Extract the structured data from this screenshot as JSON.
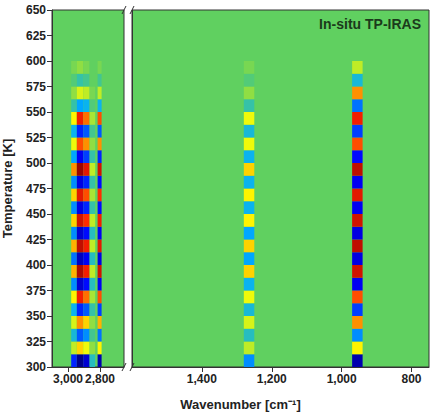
{
  "chart_data": {
    "type": "heatmap",
    "annotation": "In-situ TP-IRAS",
    "x_label": "Wavenumber [cm⁻¹]",
    "y_label": "Temperature [K]",
    "ylim": [
      300,
      650
    ],
    "yticks": [
      300,
      325,
      350,
      375,
      400,
      425,
      450,
      475,
      500,
      525,
      550,
      575,
      600,
      625,
      650
    ],
    "zlim": [
      -1,
      1
    ],
    "y_bins": [
      300,
      312.5,
      325,
      337.5,
      350,
      362.5,
      375,
      387.5,
      400,
      412.5,
      425,
      437.5,
      450,
      462.5,
      475,
      487.5,
      500,
      512.5,
      525,
      537.5,
      550,
      562.5,
      575,
      587.5,
      600
    ],
    "panels": [
      {
        "xlim": [
          3100,
          2650
        ],
        "xticks": [
          3000,
          2800
        ],
        "x_bins": [
          [
            2980,
            2945
          ],
          [
            2945,
            2905
          ],
          [
            2905,
            2865
          ],
          [
            2865,
            2830
          ],
          [
            2815,
            2790
          ]
        ],
        "z": [
          [
            -0.6,
            -1.0,
            -0.8,
            -0.2,
            -0.9
          ],
          [
            0.2,
            0.4,
            0.3,
            0.1,
            0.35
          ],
          [
            -0.25,
            -0.5,
            -0.4,
            -0.1,
            -0.45
          ],
          [
            0.25,
            0.5,
            0.4,
            0.1,
            0.45
          ],
          [
            -0.3,
            -0.6,
            -0.5,
            -0.15,
            -0.55
          ],
          [
            0.35,
            0.7,
            0.55,
            0.15,
            0.6
          ],
          [
            -0.4,
            -0.8,
            -0.65,
            -0.2,
            -0.7
          ],
          [
            0.45,
            0.9,
            0.7,
            0.2,
            0.8
          ],
          [
            -0.45,
            -0.85,
            -0.7,
            -0.2,
            -0.75
          ],
          [
            0.45,
            0.85,
            0.7,
            0.2,
            0.75
          ],
          [
            -0.4,
            -0.8,
            -0.65,
            -0.2,
            -0.7
          ],
          [
            0.4,
            0.8,
            0.65,
            0.2,
            0.7
          ],
          [
            -0.4,
            -0.75,
            -0.6,
            -0.15,
            -0.65
          ],
          [
            0.4,
            0.75,
            0.6,
            0.15,
            0.65
          ],
          [
            -0.4,
            -0.75,
            -0.6,
            -0.15,
            -0.65
          ],
          [
            0.5,
            0.95,
            0.75,
            0.2,
            0.8
          ],
          [
            -0.35,
            -0.7,
            -0.55,
            -0.15,
            -0.6
          ],
          [
            0.3,
            0.6,
            0.5,
            0.1,
            0.5
          ],
          [
            -0.3,
            -0.6,
            -0.5,
            -0.1,
            -0.5
          ],
          [
            0.35,
            0.7,
            0.55,
            0.15,
            0.6
          ],
          [
            -0.15,
            -0.35,
            -0.3,
            -0.05,
            -0.3
          ],
          [
            0.1,
            0.25,
            0.2,
            0.05,
            0.2
          ],
          [
            -0.05,
            -0.15,
            -0.1,
            0,
            -0.1
          ],
          [
            0.05,
            0.1,
            0.05,
            0,
            0.05
          ]
        ]
      },
      {
        "xlim": [
          1600,
          750
        ],
        "xticks": [
          1400,
          1200,
          1000,
          800
        ],
        "x_bins": [
          [
            1280,
            1250
          ],
          [
            970,
            940
          ]
        ],
        "z": [
          [
            -0.4,
            -0.9
          ],
          [
            0.2,
            0.35
          ],
          [
            -0.2,
            -0.4
          ],
          [
            0.25,
            0.5
          ],
          [
            -0.25,
            -0.55
          ],
          [
            0.3,
            0.6
          ],
          [
            -0.3,
            -0.7
          ],
          [
            0.4,
            0.8
          ],
          [
            -0.35,
            -0.75
          ],
          [
            0.4,
            0.85
          ],
          [
            -0.35,
            -0.75
          ],
          [
            0.35,
            0.8
          ],
          [
            -0.3,
            -0.7
          ],
          [
            0.35,
            0.75
          ],
          [
            -0.3,
            -0.7
          ],
          [
            0.4,
            0.85
          ],
          [
            -0.3,
            -0.65
          ],
          [
            0.3,
            0.6
          ],
          [
            -0.25,
            -0.55
          ],
          [
            0.3,
            0.7
          ],
          [
            -0.15,
            -0.45
          ],
          [
            0.1,
            0.5
          ],
          [
            -0.05,
            -0.25
          ],
          [
            0.05,
            0.2
          ]
        ]
      }
    ]
  }
}
